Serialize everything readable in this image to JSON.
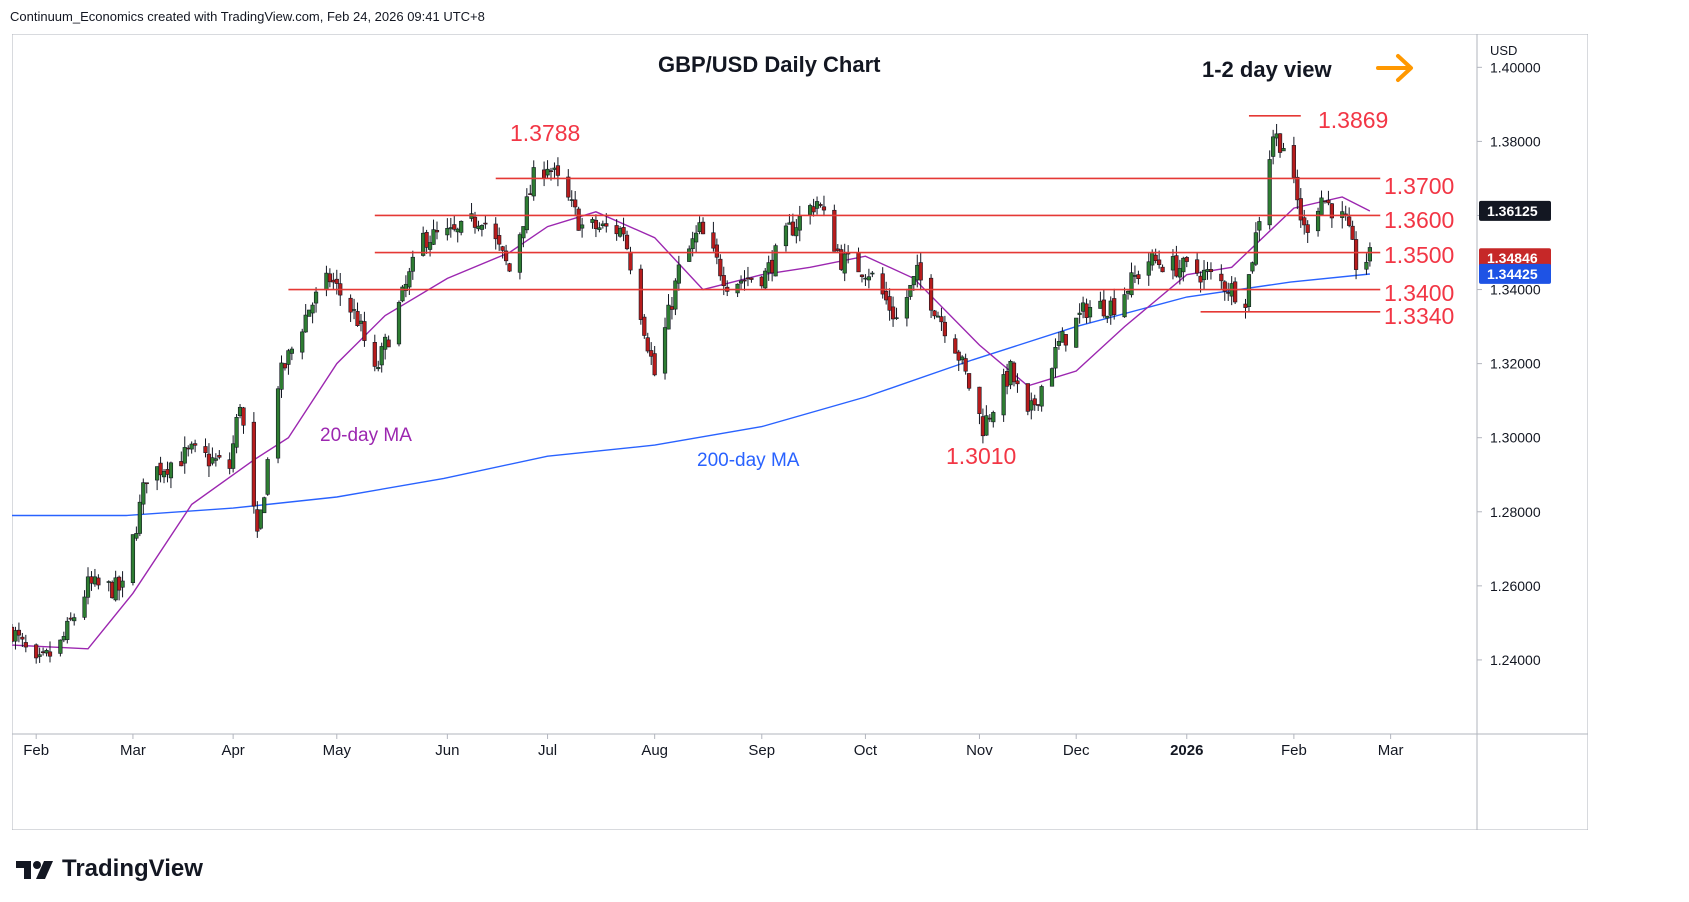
{
  "attribution": "Continuum_Economics created with TradingView.com, Feb 24, 2026 09:41 UTC+8",
  "footer_brand": "TradingView",
  "colors": {
    "up": "#2e7d32",
    "down": "#b71c1c",
    "wick": "#131722",
    "level_line": "#e53935",
    "level_text": "#f23645",
    "ma20": "#9c27b0",
    "ma200": "#2962ff",
    "arrow": "#ff9800",
    "badge_last": "#c62828",
    "badge_ma200": "#1e53e5",
    "badge_ma20": "#131722"
  },
  "chart_data": {
    "type": "candlestick",
    "title": "GBP/USD Daily Chart",
    "subtitle": "1-2 day view",
    "currency": "USD",
    "ylim": [
      1.22,
      1.409
    ],
    "y_ticks": [
      "1.40000",
      "1.38000",
      "1.36000",
      "1.34000",
      "1.32000",
      "1.30000",
      "1.28000",
      "1.26000",
      "1.24000"
    ],
    "y_tick_values": [
      1.4,
      1.38,
      1.36,
      1.34,
      1.32,
      1.3,
      1.28,
      1.26,
      1.24
    ],
    "x_ticks": [
      "Feb",
      "Mar",
      "Apr",
      "May",
      "Jun",
      "Jul",
      "Aug",
      "Sep",
      "Oct",
      "Nov",
      "Dec",
      "2026",
      "Feb",
      "Mar"
    ],
    "x_tick_dates": [
      "2025-02-03",
      "2025-03-03",
      "2025-04-01",
      "2025-05-01",
      "2025-06-02",
      "2025-07-01",
      "2025-08-01",
      "2025-09-01",
      "2025-10-01",
      "2025-11-03",
      "2025-12-01",
      "2026-01-02",
      "2026-02-02",
      "2026-03-02"
    ],
    "x_range": [
      "2025-01-27",
      "2026-03-27"
    ],
    "levels": [
      {
        "label": "1.3869",
        "value": 1.3869,
        "from": "2026-01-20",
        "to": "2026-02-04"
      },
      {
        "label": "1.3788",
        "value": 1.3788
      },
      {
        "label": "1.3700",
        "value": 1.37,
        "from": "2025-06-16",
        "to": "2026-02-27"
      },
      {
        "label": "1.3600",
        "value": 1.36,
        "from": "2025-05-12",
        "to": "2026-02-27"
      },
      {
        "label": "1.3500",
        "value": 1.35,
        "from": "2025-05-12",
        "to": "2026-02-27"
      },
      {
        "label": "1.3400",
        "value": 1.34,
        "from": "2025-04-17",
        "to": "2026-02-27"
      },
      {
        "label": "1.3340",
        "value": 1.334,
        "from": "2026-01-06",
        "to": "2026-02-27"
      },
      {
        "label": "1.3010",
        "value": 1.301
      }
    ],
    "annotations": [
      {
        "text": "20-day MA"
      },
      {
        "text": "200-day MA"
      }
    ],
    "price_badges": [
      {
        "text": "1.36125",
        "value": 1.36125,
        "kind": "ma20"
      },
      {
        "text": "1.34846",
        "value": 1.34846,
        "kind": "last"
      },
      {
        "text": "1.34425",
        "value": 1.34425,
        "kind": "ma200"
      }
    ],
    "anchors": [
      [
        "2025-01-27",
        1.248
      ],
      [
        "2025-02-03",
        1.238
      ],
      [
        "2025-02-10",
        1.244
      ],
      [
        "2025-02-18",
        1.26
      ],
      [
        "2025-02-28",
        1.259
      ],
      [
        "2025-03-07",
        1.29
      ],
      [
        "2025-03-20",
        1.296
      ],
      [
        "2025-03-31",
        1.292
      ],
      [
        "2025-04-03",
        1.31
      ],
      [
        "2025-04-08",
        1.272
      ],
      [
        "2025-04-14",
        1.315
      ],
      [
        "2025-04-23",
        1.335
      ],
      [
        "2025-04-29",
        1.343
      ],
      [
        "2025-05-07",
        1.332
      ],
      [
        "2025-05-12",
        1.317
      ],
      [
        "2025-05-20",
        1.338
      ],
      [
        "2025-05-26",
        1.354
      ],
      [
        "2025-06-05",
        1.355
      ],
      [
        "2025-06-12",
        1.36
      ],
      [
        "2025-06-20",
        1.345
      ],
      [
        "2025-06-27",
        1.37
      ],
      [
        "2025-07-01",
        1.374
      ],
      [
        "2025-07-11",
        1.357
      ],
      [
        "2025-07-23",
        1.356
      ],
      [
        "2025-08-01",
        1.317
      ],
      [
        "2025-08-08",
        1.345
      ],
      [
        "2025-08-14",
        1.356
      ],
      [
        "2025-08-22",
        1.342
      ],
      [
        "2025-09-02",
        1.344
      ],
      [
        "2025-09-09",
        1.356
      ],
      [
        "2025-09-17",
        1.364
      ],
      [
        "2025-09-24",
        1.348
      ],
      [
        "2025-10-02",
        1.345
      ],
      [
        "2025-10-10",
        1.332
      ],
      [
        "2025-10-16",
        1.344
      ],
      [
        "2025-10-27",
        1.325
      ],
      [
        "2025-11-04",
        1.303
      ],
      [
        "2025-11-12",
        1.318
      ],
      [
        "2025-11-17",
        1.305
      ],
      [
        "2025-11-26",
        1.325
      ],
      [
        "2025-12-04",
        1.335
      ],
      [
        "2025-12-12",
        1.336
      ],
      [
        "2025-12-22",
        1.348
      ],
      [
        "2025-12-31",
        1.346
      ],
      [
        "2026-01-08",
        1.344
      ],
      [
        "2026-01-19",
        1.338
      ],
      [
        "2026-01-27",
        1.382
      ],
      [
        "2026-01-30",
        1.379
      ],
      [
        "2026-02-05",
        1.356
      ],
      [
        "2026-02-10",
        1.365
      ],
      [
        "2026-02-17",
        1.358
      ],
      [
        "2026-02-20",
        1.347
      ],
      [
        "2026-02-24",
        1.3485
      ]
    ],
    "ma20_points": [
      [
        "2025-01-27",
        1.244
      ],
      [
        "2025-02-18",
        1.243
      ],
      [
        "2025-03-03",
        1.258
      ],
      [
        "2025-03-20",
        1.282
      ],
      [
        "2025-04-07",
        1.294
      ],
      [
        "2025-04-17",
        1.3
      ],
      [
        "2025-05-01",
        1.32
      ],
      [
        "2025-05-15",
        1.333
      ],
      [
        "2025-06-02",
        1.343
      ],
      [
        "2025-06-20",
        1.35
      ],
      [
        "2025-07-01",
        1.357
      ],
      [
        "2025-07-15",
        1.361
      ],
      [
        "2025-08-01",
        1.354
      ],
      [
        "2025-08-15",
        1.34
      ],
      [
        "2025-09-01",
        1.344
      ],
      [
        "2025-09-15",
        1.346
      ],
      [
        "2025-10-01",
        1.349
      ],
      [
        "2025-10-15",
        1.343
      ],
      [
        "2025-11-03",
        1.325
      ],
      [
        "2025-11-17",
        1.314
      ],
      [
        "2025-12-01",
        1.318
      ],
      [
        "2025-12-15",
        1.33
      ],
      [
        "2026-01-02",
        1.344
      ],
      [
        "2026-01-15",
        1.346
      ],
      [
        "2026-02-02",
        1.362
      ],
      [
        "2026-02-16",
        1.365
      ],
      [
        "2026-02-24",
        1.3612
      ]
    ],
    "ma200_points": [
      [
        "2025-01-27",
        1.279
      ],
      [
        "2025-03-01",
        1.279
      ],
      [
        "2025-04-01",
        1.281
      ],
      [
        "2025-05-01",
        1.284
      ],
      [
        "2025-06-01",
        1.289
      ],
      [
        "2025-07-01",
        1.295
      ],
      [
        "2025-08-01",
        1.298
      ],
      [
        "2025-09-01",
        1.303
      ],
      [
        "2025-10-01",
        1.311
      ],
      [
        "2025-11-01",
        1.321
      ],
      [
        "2025-12-01",
        1.33
      ],
      [
        "2026-01-02",
        1.338
      ],
      [
        "2026-02-01",
        1.342
      ],
      [
        "2026-02-24",
        1.3442
      ]
    ]
  }
}
